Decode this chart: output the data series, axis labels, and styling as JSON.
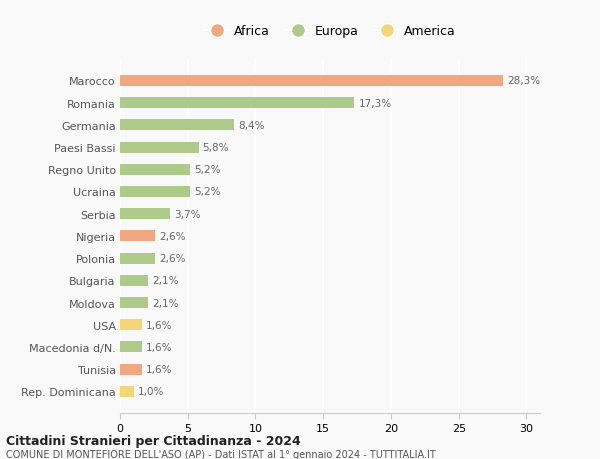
{
  "countries": [
    "Marocco",
    "Romania",
    "Germania",
    "Paesi Bassi",
    "Regno Unito",
    "Ucraina",
    "Serbia",
    "Nigeria",
    "Polonia",
    "Bulgaria",
    "Moldova",
    "USA",
    "Macedonia d/N.",
    "Tunisia",
    "Rep. Dominicana"
  ],
  "values": [
    28.3,
    17.3,
    8.4,
    5.8,
    5.2,
    5.2,
    3.7,
    2.6,
    2.6,
    2.1,
    2.1,
    1.6,
    1.6,
    1.6,
    1.0
  ],
  "labels": [
    "28,3%",
    "17,3%",
    "8,4%",
    "5,8%",
    "5,2%",
    "5,2%",
    "3,7%",
    "2,6%",
    "2,6%",
    "2,1%",
    "2,1%",
    "1,6%",
    "1,6%",
    "1,6%",
    "1,0%"
  ],
  "continent": [
    "Africa",
    "Europa",
    "Europa",
    "Europa",
    "Europa",
    "Europa",
    "Europa",
    "Africa",
    "Europa",
    "Europa",
    "Europa",
    "America",
    "Europa",
    "Africa",
    "America"
  ],
  "colors": {
    "Africa": "#F0A882",
    "Europa": "#AECA8A",
    "America": "#F5D57A"
  },
  "xlim": [
    0,
    31
  ],
  "xticks": [
    0,
    5,
    10,
    15,
    20,
    25,
    30
  ],
  "title": "Cittadini Stranieri per Cittadinanza - 2024",
  "subtitle": "COMUNE DI MONTEFIORE DELL'ASO (AP) - Dati ISTAT al 1° gennaio 2024 - TUTTITALIA.IT",
  "bg_color": "#f9f9f9",
  "grid_color": "#ffffff",
  "bar_height": 0.5
}
